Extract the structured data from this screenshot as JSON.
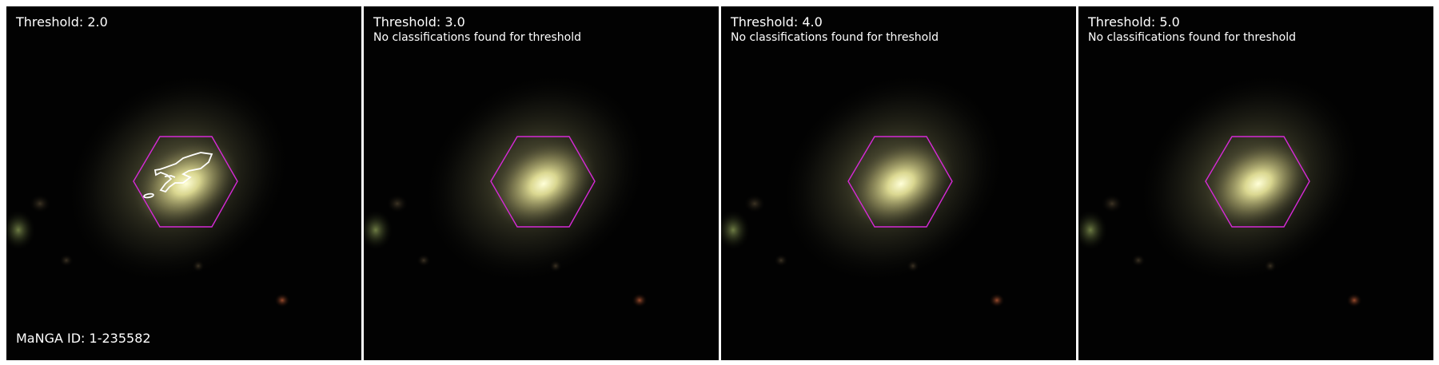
{
  "figure": {
    "manga_id": "MaNGA ID: 1-235582",
    "panels": [
      {
        "title": "Threshold: 2.0",
        "note": ""
      },
      {
        "title": "Threshold: 3.0",
        "note": "No classifications found for threshold"
      },
      {
        "title": "Threshold: 4.0",
        "note": "No classifications found for threshold"
      },
      {
        "title": "Threshold: 5.0",
        "note": "No classifications found for threshold"
      }
    ]
  },
  "colors": {
    "background": "#000000",
    "hexagon": "#d62ad6",
    "contour": "#ffffff",
    "text": "#ffffff"
  },
  "icons": [
    "galaxy-image",
    "ifu-hexagon-footprint",
    "classification-contour"
  ]
}
